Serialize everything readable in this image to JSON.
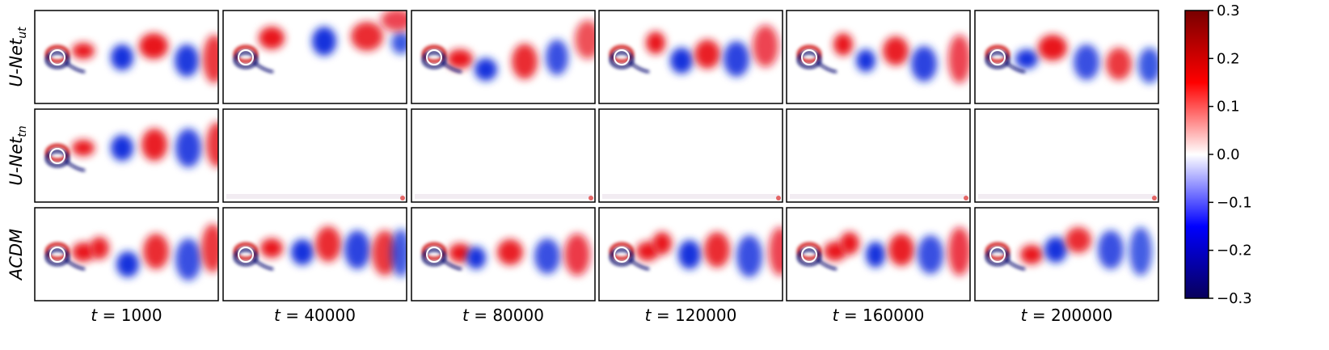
{
  "chart_data": {
    "type": "heatmap",
    "rows": [
      {
        "name": "U-Net",
        "subscript": "ut"
      },
      {
        "name": "U-Net",
        "subscript": "tn"
      },
      {
        "name": "ACDM",
        "subscript": ""
      }
    ],
    "column_prefix": "t = ",
    "columns": [
      1000,
      40000,
      80000,
      120000,
      160000,
      200000
    ],
    "colorbar": {
      "min": -0.3,
      "max": 0.3,
      "ticks": [
        "0.3",
        "0.2",
        "0.1",
        "0.0",
        "−0.1",
        "−0.2",
        "−0.3"
      ],
      "colormap": [
        "#08005a",
        "#0000ff",
        "#ffffff",
        "#ff0000",
        "#780000"
      ]
    },
    "colors": {
      "positive": "#e8141e",
      "negative": "#1432dc",
      "cylinder_red": "#cc0000",
      "cylinder_blue": "#0a0a6e"
    }
  }
}
